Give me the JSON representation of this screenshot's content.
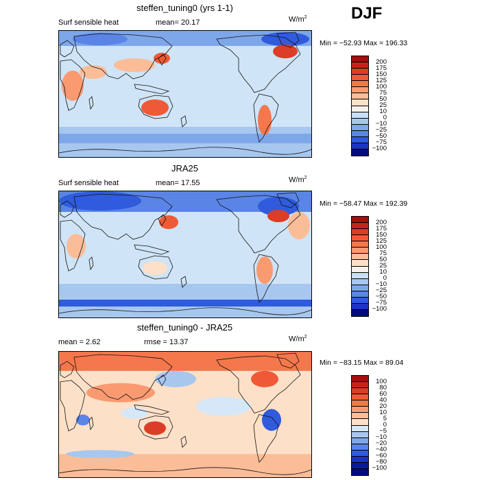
{
  "season": "DJF",
  "panels": [
    {
      "title": "steffen_tuning0 (yrs 1-1)",
      "left_label": "Surf sensible heat",
      "stat_label": "mean=  20.17",
      "units_base": "W/m",
      "units_exp": "2",
      "minmax": "Min = −52.93 Max = 196.33",
      "levels": [
        "200",
        "175",
        "150",
        "125",
        "100",
        "75",
        "50",
        "25",
        "10",
        "0",
        "−10",
        "−25",
        "−50",
        "−75",
        "−100"
      ],
      "colors": [
        "#a50f0f",
        "#c4241a",
        "#dc3d27",
        "#ef5a36",
        "#f5774c",
        "#f99a70",
        "#fbbd98",
        "#fde0c8",
        "#f5f0ec",
        "#c8e0f5",
        "#a7c7ef",
        "#7ea7ea",
        "#5a85e6",
        "#2f5bdc",
        "#1d33c4",
        "#000c80"
      ]
    },
    {
      "title": "JRA25",
      "left_label": "Surf sensible heat",
      "stat_label": "mean=  17.55",
      "units_base": "W/m",
      "units_exp": "2",
      "minmax": "Min = −58.47 Max = 192.39",
      "levels": [
        "200",
        "175",
        "150",
        "125",
        "100",
        "75",
        "50",
        "25",
        "10",
        "0",
        "−10",
        "−25",
        "−50",
        "−75",
        "−100"
      ],
      "colors": [
        "#a50f0f",
        "#c4241a",
        "#dc3d27",
        "#ef5a36",
        "#f5774c",
        "#f99a70",
        "#fbbd98",
        "#fde0c8",
        "#f5f0ec",
        "#c8e0f5",
        "#a7c7ef",
        "#7ea7ea",
        "#5a85e6",
        "#2f5bdc",
        "#1d33c4",
        "#000c80"
      ]
    },
    {
      "title": "steffen_tuning0 - JRA25",
      "left_label": "mean =   2.62",
      "stat_label": "rmse =  13.37",
      "units_base": "W/m",
      "units_exp": "2",
      "minmax": "Min = −83.15 Max =  89.04",
      "levels": [
        "100",
        "80",
        "60",
        "40",
        "20",
        "10",
        "5",
        "0",
        "−5",
        "−10",
        "−20",
        "−40",
        "−60",
        "−80",
        "−100"
      ],
      "colors": [
        "#a50f0f",
        "#c4241a",
        "#dc3d27",
        "#ef5a36",
        "#f5774c",
        "#f99a70",
        "#fbbd98",
        "#fde0c8",
        "#d6e8f7",
        "#a7c7ef",
        "#7ea7ea",
        "#5a85e6",
        "#2f5bdc",
        "#1d33c4",
        "#0a1aa0",
        "#000c80"
      ]
    }
  ]
}
